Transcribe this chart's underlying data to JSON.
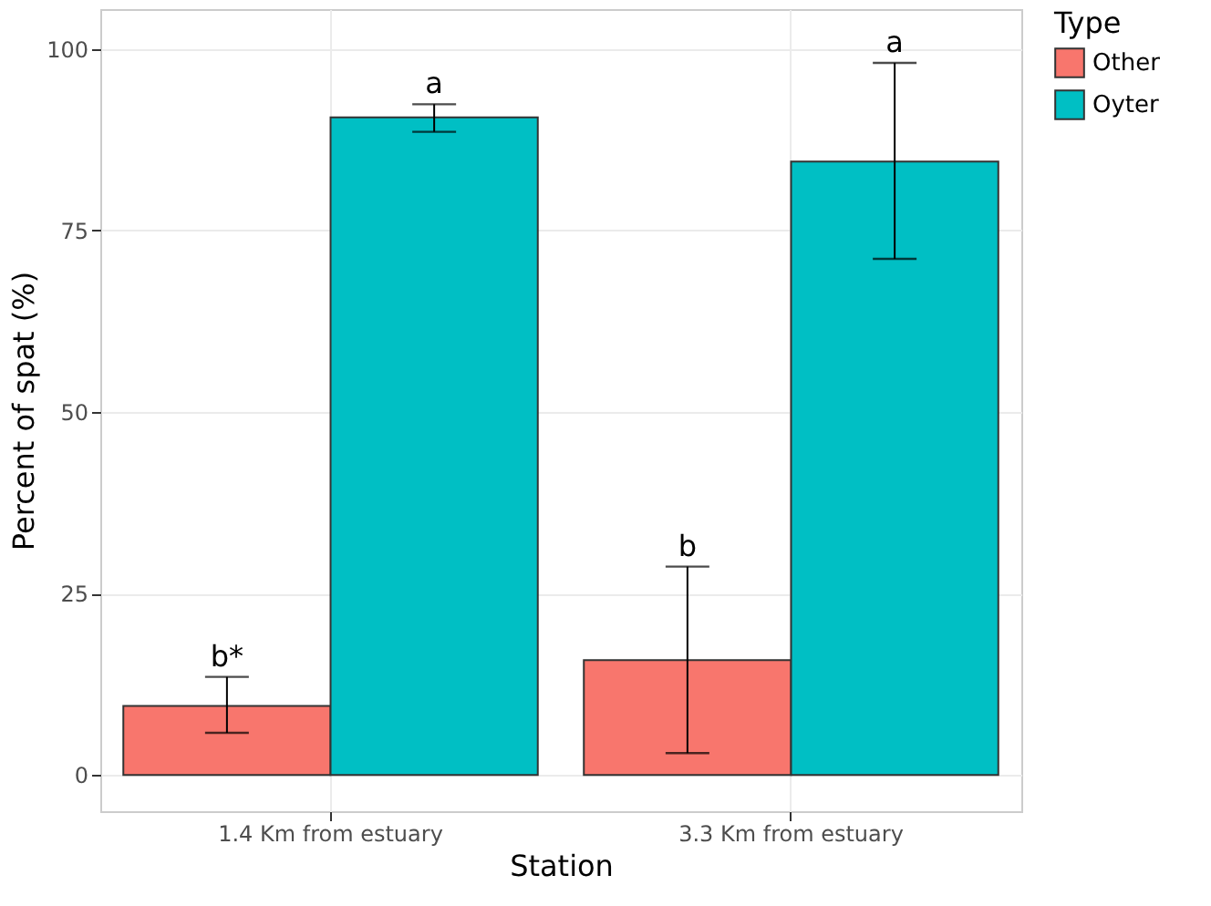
{
  "chart_data": {
    "type": "bar",
    "xlabel": "Station",
    "ylabel": "Percent of spat (%)",
    "legend_title": "Type",
    "categories": [
      "1.4 Km from estuary",
      "3.3 Km from estuary"
    ],
    "series": [
      {
        "name": "Other",
        "color": "#f8766d",
        "values": [
          9.5,
          15.8
        ],
        "errors": [
          [
            5.8,
            13.5
          ],
          [
            3.0,
            28.7
          ]
        ]
      },
      {
        "name": "Oyter",
        "color": "#00bfc4",
        "values": [
          90.6,
          84.5
        ],
        "errors": [
          [
            88.6,
            92.4
          ],
          [
            71.1,
            98.1
          ]
        ]
      }
    ],
    "ylim": [
      -5,
      105.5
    ],
    "yticks": [
      0,
      25,
      50,
      75,
      100
    ],
    "grid": true,
    "legend": "right",
    "annotations": [
      "b*",
      "a",
      "b",
      "a"
    ]
  }
}
